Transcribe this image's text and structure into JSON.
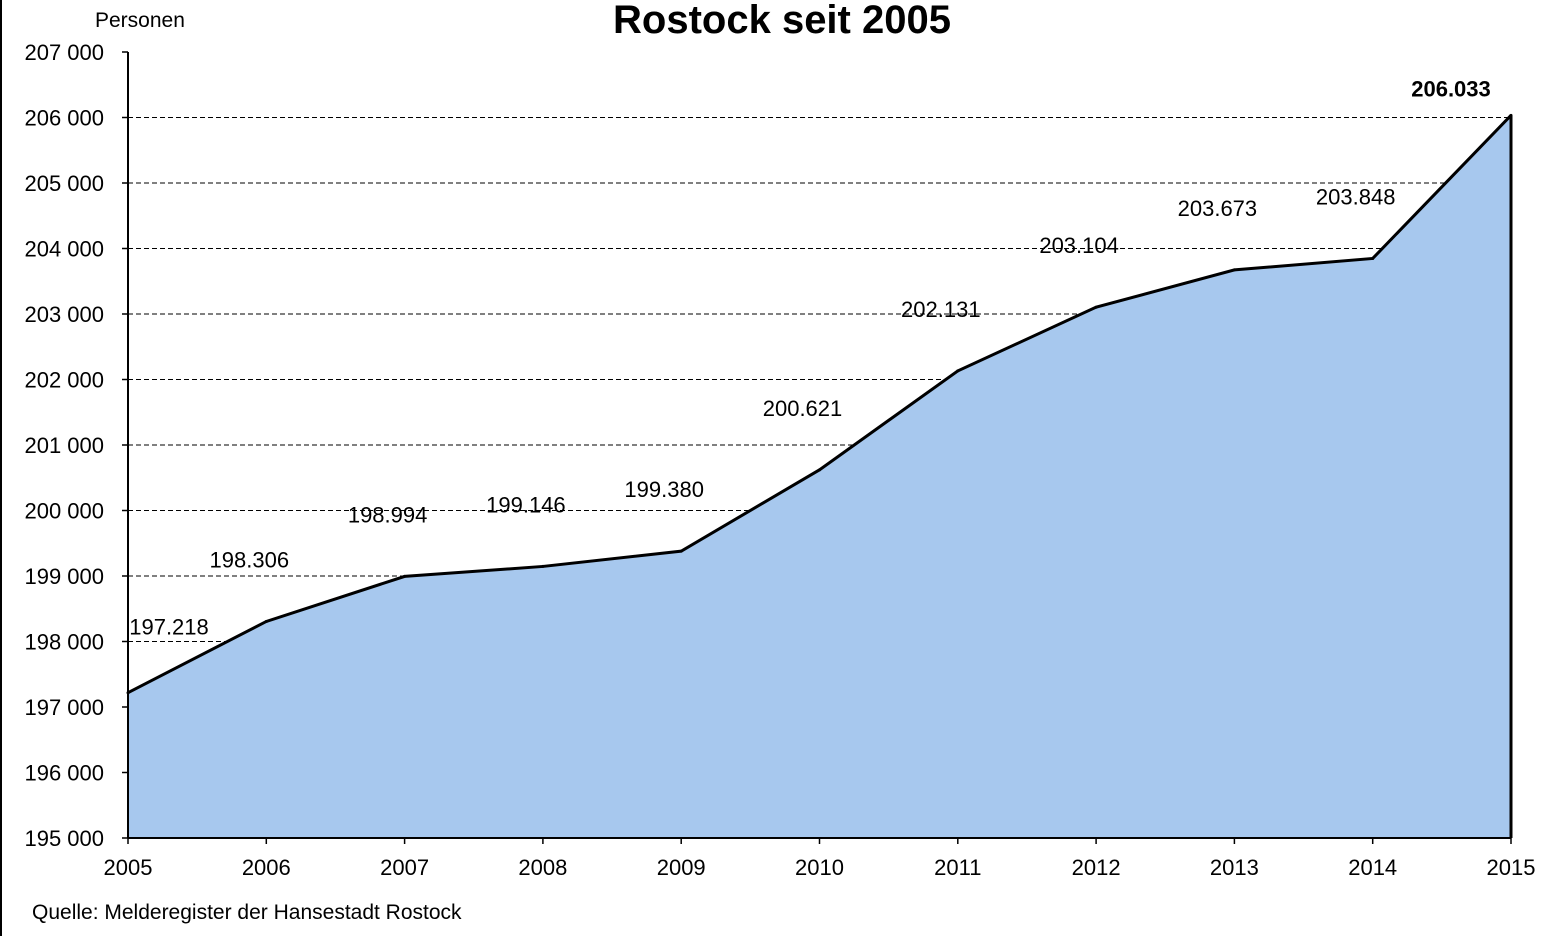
{
  "chart_data": {
    "type": "area",
    "title": "Rostock seit 2005",
    "ylabel": "Personen",
    "xlabel": "",
    "source": "Quelle: Melderegister der Hansestadt Rostock",
    "x": [
      "2005",
      "2006",
      "2007",
      "2008",
      "2009",
      "2010",
      "2011",
      "2012",
      "2013",
      "2014",
      "2015"
    ],
    "values": [
      197218,
      198306,
      198994,
      199146,
      199380,
      200621,
      202131,
      203104,
      203673,
      203848,
      206033
    ],
    "data_labels": [
      "197.218",
      "198.306",
      "198.994",
      "199.146",
      "199.380",
      "200.621",
      "202.131",
      "203.104",
      "203.673",
      "203.848",
      "206.033"
    ],
    "ylim": [
      195000,
      207000
    ],
    "yticks": [
      195000,
      196000,
      197000,
      198000,
      199000,
      200000,
      201000,
      202000,
      203000,
      204000,
      205000,
      206000,
      207000
    ],
    "ytick_labels": [
      "195 000",
      "196 000",
      "197 000",
      "198 000",
      "199 000",
      "200 000",
      "201 000",
      "202 000",
      "203 000",
      "204 000",
      "205 000",
      "206 000",
      "207 000"
    ],
    "grid": "horizontal dashed",
    "fill_color": "#a7c8ee",
    "line_color": "#000000"
  }
}
